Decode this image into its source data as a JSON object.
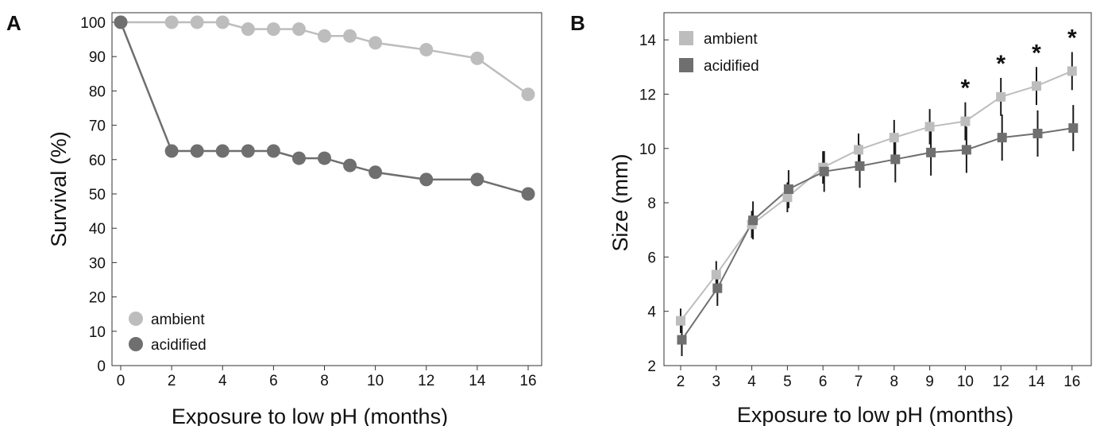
{
  "panels": [
    {
      "letter": "A",
      "chart_data": {
        "type": "line",
        "title": "",
        "xlabel": "Exposure to low pH (months)",
        "ylabel": "Survival (%)",
        "xlim": [
          0,
          16
        ],
        "ylim": [
          0,
          100
        ],
        "xticks": [
          0,
          2,
          4,
          6,
          8,
          10,
          12,
          14,
          16
        ],
        "yticks": [
          0,
          10,
          20,
          30,
          40,
          50,
          60,
          70,
          80,
          90,
          100
        ],
        "grid": false,
        "legend_position": "bottom-left",
        "marker": "circle",
        "series": [
          {
            "name": "ambient",
            "color": "#bdbdbd",
            "x": [
              0,
              2,
              3,
              4,
              5,
              6,
              7,
              8,
              9,
              10,
              12,
              14,
              16
            ],
            "y": [
              100,
              100,
              100,
              100,
              98,
              98,
              98,
              96,
              96,
              94,
              92,
              89.5,
              79
            ]
          },
          {
            "name": "acidified",
            "color": "#6f6f6f",
            "x": [
              0,
              2,
              3,
              4,
              5,
              6,
              7,
              8,
              9,
              10,
              12,
              14,
              16
            ],
            "y": [
              100,
              62.5,
              62.5,
              62.5,
              62.5,
              62.5,
              60.4,
              60.4,
              58.3,
              56.3,
              54.2,
              54.2,
              50
            ]
          }
        ]
      }
    },
    {
      "letter": "B",
      "chart_data": {
        "type": "line",
        "title": "",
        "xlabel": "Exposure to low pH (months)",
        "ylabel": "Size (mm)",
        "categories": [
          "2",
          "3",
          "4",
          "5",
          "6",
          "7",
          "8",
          "9",
          "10",
          "12",
          "14",
          "16"
        ],
        "ylim": [
          2,
          15
        ],
        "yticks": [
          2,
          4,
          6,
          8,
          10,
          12,
          14
        ],
        "grid": false,
        "legend_position": "top-left",
        "marker": "square",
        "error_bars": true,
        "significance_marker": "*",
        "significant_categories": [
          "10",
          "12",
          "14",
          "16"
        ],
        "series": [
          {
            "name": "ambient",
            "color": "#bdbdbd",
            "values": [
              3.65,
              5.35,
              7.2,
              8.2,
              9.3,
              9.95,
              10.4,
              10.8,
              11.0,
              11.9,
              12.3,
              12.85
            ],
            "errors": [
              0.45,
              0.5,
              0.5,
              0.55,
              0.6,
              0.6,
              0.65,
              0.65,
              0.7,
              0.7,
              0.7,
              0.7
            ]
          },
          {
            "name": "acidified",
            "color": "#6f6f6f",
            "values": [
              2.95,
              4.85,
              7.35,
              8.5,
              9.15,
              9.35,
              9.6,
              9.85,
              9.95,
              10.4,
              10.55,
              10.75
            ],
            "errors": [
              0.6,
              0.65,
              0.7,
              0.7,
              0.75,
              0.8,
              0.85,
              0.85,
              0.85,
              0.85,
              0.85,
              0.85
            ]
          }
        ]
      }
    }
  ]
}
